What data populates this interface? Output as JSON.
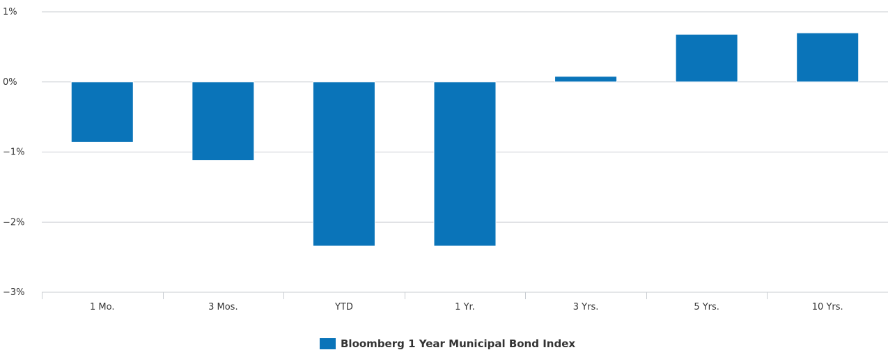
{
  "chart_data": {
    "type": "bar",
    "categories": [
      "1 Mo.",
      "3 Mos.",
      "YTD",
      "1 Yr.",
      "3 Yrs.",
      "5 Yrs.",
      "10 Yrs."
    ],
    "series": [
      {
        "name": "Bloomberg 1 Year Municipal Bond Index",
        "color": "#0a74b9",
        "values": [
          -0.86,
          -1.12,
          -2.34,
          -2.34,
          0.08,
          0.68,
          0.7
        ]
      }
    ],
    "title": "",
    "xlabel": "",
    "ylabel": "",
    "ylim": [
      -3,
      1
    ],
    "yticks": [
      1,
      0,
      -1,
      -2,
      -3
    ],
    "ytick_labels": [
      "1%",
      "0%",
      "−1%",
      "−2%",
      "−3%"
    ],
    "grid": true,
    "legend_position": "bottom-center"
  }
}
